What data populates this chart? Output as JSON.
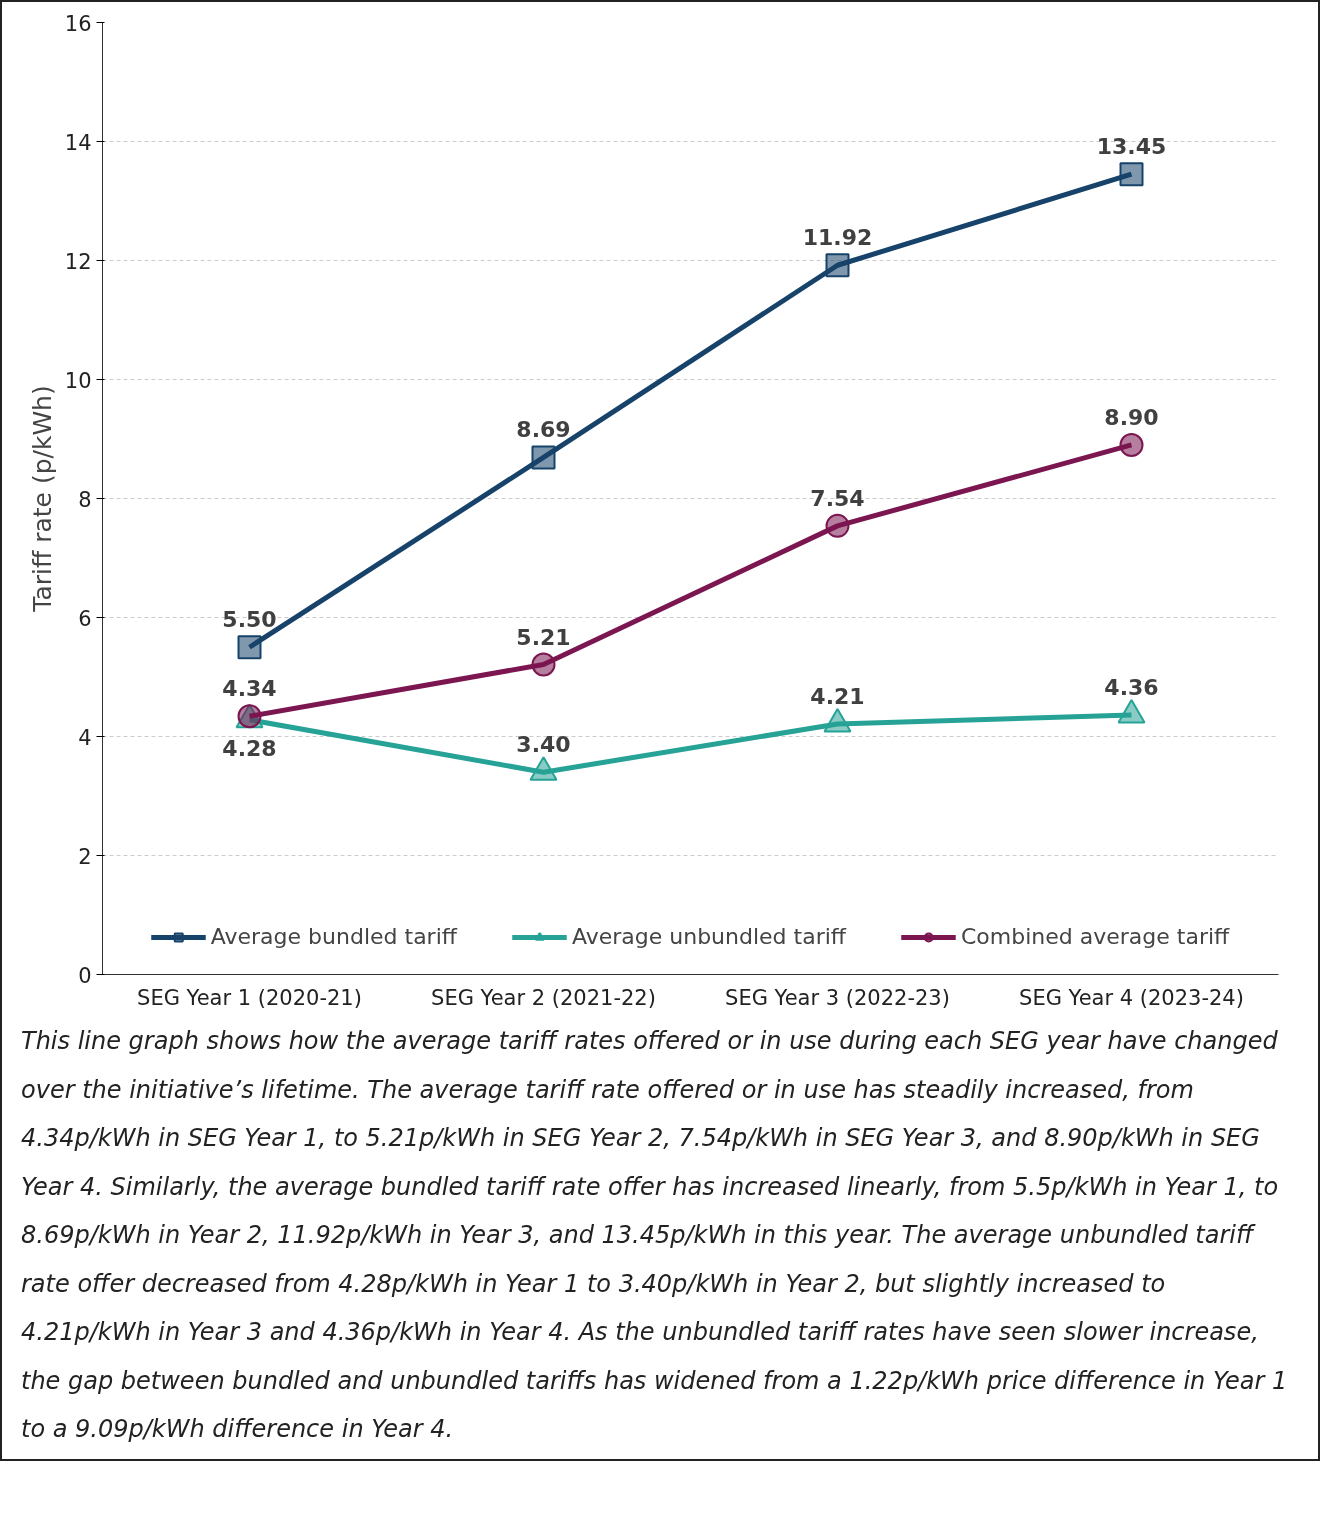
{
  "chart_data": {
    "type": "line",
    "ylabel": "Tariff rate (p/kWh)",
    "categories": [
      "SEG Year 1 (2020-21)",
      "SEG Year 2 (2021-22)",
      "SEG Year 3 (2022-23)",
      "SEG Year 4 (2023-24)"
    ],
    "ylim": [
      0,
      16
    ],
    "yticks": [
      0,
      2,
      4,
      6,
      8,
      10,
      12,
      14,
      16
    ],
    "grid": "y",
    "legend": "bottom",
    "data_labels": true,
    "line_style": "solid",
    "series": [
      {
        "name": "Average bundled tariff",
        "color": "#17436b",
        "marker": "square",
        "values": [
          5.5,
          8.69,
          11.92,
          13.45
        ],
        "value_labels": [
          "5.50",
          "8.69",
          "11.92",
          "13.45"
        ]
      },
      {
        "name": "Average unbundled tariff",
        "color": "#26a396",
        "marker": "triangle",
        "values": [
          4.28,
          3.4,
          4.21,
          4.36
        ],
        "value_labels": [
          "4.28",
          "3.40",
          "4.21",
          "4.36"
        ]
      },
      {
        "name": "Combined average tariff",
        "color": "#7b1650",
        "marker": "circle",
        "values": [
          4.34,
          5.21,
          7.54,
          8.9
        ],
        "value_labels": [
          "4.34",
          "5.21",
          "7.54",
          "8.90"
        ]
      }
    ],
    "annotations": [
      "This line graph shows how the average tariff rates offered or in use during each SEG year have changed over the initiative’s lifetime. The average tariff rate offered or in use has steadily increased, from 4.34p/kWh in SEG Year 1, to 5.21p/kWh in SEG Year 2, 7.54p/kWh in SEG Year 3, and 8.90p/kWh in SEG Year 4. Similarly, the average bundled tariff rate offer has increased linearly, from 5.5p/kWh in Year 1, to 8.69p/kWh in Year 2, 11.92p/kWh in Year 3, and 13.45p/kWh in this year. The average unbundled tariff rate offer decreased from 4.28p/kWh in Year 1 to 3.40p/kWh in Year 2, but slightly increased to 4.21p/kWh in Year 3 and 4.36p/kWh in Year 4. As the unbundled tariff rates have seen slower increase, the gap between bundled and unbundled tariffs has widened from a 1.22p/kWh price difference in Year 1 to a 9.09p/kWh difference in Year 4."
    ]
  }
}
